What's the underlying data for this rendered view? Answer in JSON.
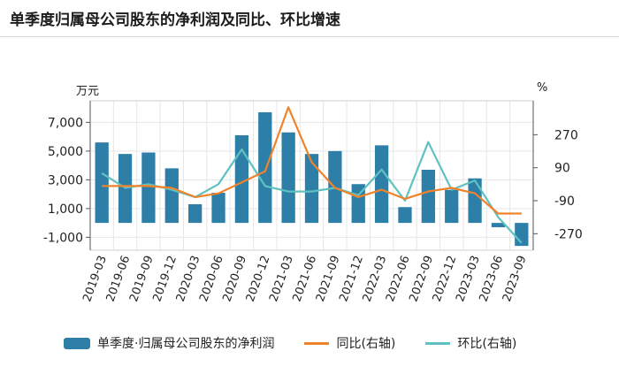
{
  "title": "单季度归属母公司股东的净利润及同比、环比增速",
  "chart_data": {
    "type": "bar",
    "categories": [
      "2019-03",
      "2019-06",
      "2019-09",
      "2019-12",
      "2020-03",
      "2020-06",
      "2020-09",
      "2020-12",
      "2021-03",
      "2021-06",
      "2021-09",
      "2021-12",
      "2022-03",
      "2022-06",
      "2022-09",
      "2022-12",
      "2023-03",
      "2023-06",
      "2023-09"
    ],
    "left_axis": {
      "unit": "万元",
      "ylim": [
        -1900,
        8500
      ],
      "ticks": [
        7000,
        5000,
        3000,
        1000,
        -1000
      ],
      "tick_labels": [
        "7,000",
        "5,000",
        "3,000",
        "1,000",
        "-1,000"
      ]
    },
    "right_axis": {
      "unit": "%",
      "ylim": [
        -360,
        455
      ],
      "ticks": [
        270,
        90,
        -90,
        -270
      ],
      "tick_labels": [
        "270",
        "90",
        "-90",
        "-270"
      ]
    },
    "series": [
      {
        "name": "单季度·归属母公司股东的净利润",
        "type": "bar",
        "axis": "left",
        "color": "#2e7fa8",
        "values": [
          5600,
          4800,
          4900,
          3800,
          1300,
          2100,
          6100,
          7700,
          6300,
          4800,
          5000,
          2700,
          5400,
          1100,
          3700,
          2300,
          3100,
          -300,
          -1600
        ]
      },
      {
        "name": "同比(右轴)",
        "type": "line",
        "axis": "right",
        "color": "#f0832a",
        "values": [
          -10,
          -10,
          -10,
          -20,
          -70,
          -50,
          10,
          70,
          420,
          120,
          -20,
          -70,
          -30,
          -80,
          -40,
          -20,
          -50,
          -160,
          -160
        ]
      },
      {
        "name": "环比(右轴)",
        "type": "line",
        "axis": "right",
        "color": "#5fc1c0",
        "values": [
          60,
          -20,
          0,
          -30,
          -70,
          0,
          190,
          -10,
          -40,
          -40,
          -20,
          -60,
          80,
          -90,
          230,
          -30,
          20,
          -180,
          -320
        ]
      }
    ],
    "grid": true,
    "legend": "bottom"
  }
}
